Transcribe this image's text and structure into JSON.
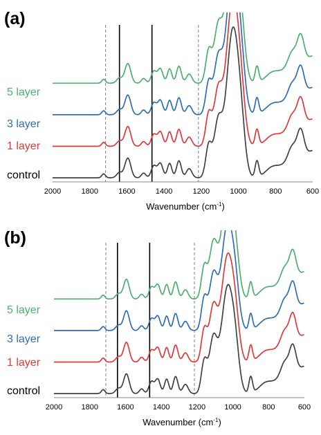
{
  "figure": {
    "axis_title": "Wavenumber (cm",
    "axis_title_sup": "-1",
    "axis_title_close": ")"
  },
  "chart_data": [
    {
      "type": "line",
      "panel": "(a)",
      "xlabel": "Wavenumber (cm-1)",
      "ylabel": "",
      "xlim": [
        2000,
        600
      ],
      "x_reversed": true,
      "x_ticks": [
        2000,
        1800,
        1600,
        1400,
        1200,
        1000,
        800,
        600
      ],
      "reference_lines": [
        {
          "x": 1715,
          "style": "dashed",
          "color": "#888888"
        },
        {
          "x": 1640,
          "style": "solid",
          "color": "#000000"
        },
        {
          "x": 1465,
          "style": "solid",
          "color": "#000000"
        },
        {
          "x": 1215,
          "style": "dashed",
          "color": "#888888"
        }
      ],
      "series": [
        {
          "name": "5 layer",
          "color": "#4CAF6E",
          "offset": 3.6
        },
        {
          "name": "3 layer",
          "color": "#2E6DB4",
          "offset": 2.4
        },
        {
          "name": "1 layer",
          "color": "#E0383A",
          "offset": 1.2
        },
        {
          "name": "control",
          "color": "#404040",
          "offset": 0.0
        }
      ],
      "grid": false,
      "legend": "inline-left"
    },
    {
      "type": "line",
      "panel": "(b)",
      "xlabel": "Wavenumber (cm-1)",
      "ylabel": "",
      "xlim": [
        2000,
        600
      ],
      "x_reversed": true,
      "x_ticks": [
        2000,
        1800,
        1600,
        1400,
        1200,
        1000,
        800,
        600
      ],
      "reference_lines": [
        {
          "x": 1710,
          "style": "dashed",
          "color": "#888888"
        },
        {
          "x": 1645,
          "style": "solid",
          "color": "#000000"
        },
        {
          "x": 1465,
          "style": "solid",
          "color": "#000000"
        },
        {
          "x": 1215,
          "style": "dashed",
          "color": "#888888"
        }
      ],
      "series": [
        {
          "name": "5 layer",
          "color": "#4CAF6E",
          "offset": 3.6
        },
        {
          "name": "3 layer",
          "color": "#2E6DB4",
          "offset": 2.4
        },
        {
          "name": "1 layer",
          "color": "#E0383A",
          "offset": 1.2
        },
        {
          "name": "control",
          "color": "#404040",
          "offset": 0.0
        }
      ],
      "grid": false,
      "legend": "inline-left"
    }
  ]
}
